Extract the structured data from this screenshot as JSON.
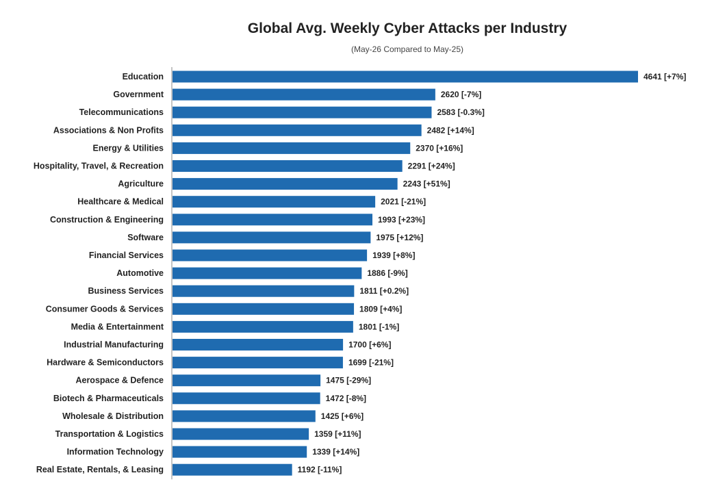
{
  "chart_data": {
    "type": "bar",
    "orientation": "horizontal",
    "title": "Global Avg. Weekly Cyber Attacks per Industry",
    "subtitle": "(May-26 Compared to May-25)",
    "bar_color": "#1f6bb0",
    "categories": [
      "Education",
      "Government",
      "Telecommunications",
      "Associations & Non Profits",
      "Energy & Utilities",
      "Hospitality, Travel, & Recreation",
      "Agriculture",
      "Healthcare & Medical",
      "Construction & Engineering",
      "Software",
      "Financial Services",
      "Automotive",
      "Business Services",
      "Consumer Goods & Services",
      "Media & Entertainment",
      "Industrial Manufacturing",
      "Hardware & Semiconductors",
      "Aerospace & Defence",
      "Biotech & Pharmaceuticals",
      "Wholesale & Distribution",
      "Transportation & Logistics",
      "Information Technology",
      "Real Estate, Rentals, & Leasing"
    ],
    "values": [
      4641,
      2620,
      2583,
      2482,
      2370,
      2291,
      2243,
      2021,
      1993,
      1975,
      1939,
      1886,
      1811,
      1809,
      1801,
      1700,
      1699,
      1475,
      1472,
      1425,
      1359,
      1339,
      1192
    ],
    "data_labels": [
      "4641 [+7%]",
      "2620 [-7%]",
      "2583 [-0.3%]",
      "2482 [+14%]",
      "2370 [+16%]",
      "2291 [+24%]",
      "2243 [+51%]",
      "2021 [-21%]",
      "1993 [+23%]",
      "1975 [+12%]",
      "1939 [+8%]",
      "1886 [-9%]",
      "1811 [+0.2%]",
      "1809 [+4%]",
      "1801 [-1%]",
      "1700 [+6%]",
      "1699 [-21%]",
      "1475 [-29%]",
      "1472 [-8%]",
      "1425 [+6%]",
      "1359 [+11%]",
      "1339 [+14%]",
      "1192 [-11%]"
    ],
    "xlim": [
      0,
      4641
    ],
    "grid": false,
    "legend": "none"
  }
}
